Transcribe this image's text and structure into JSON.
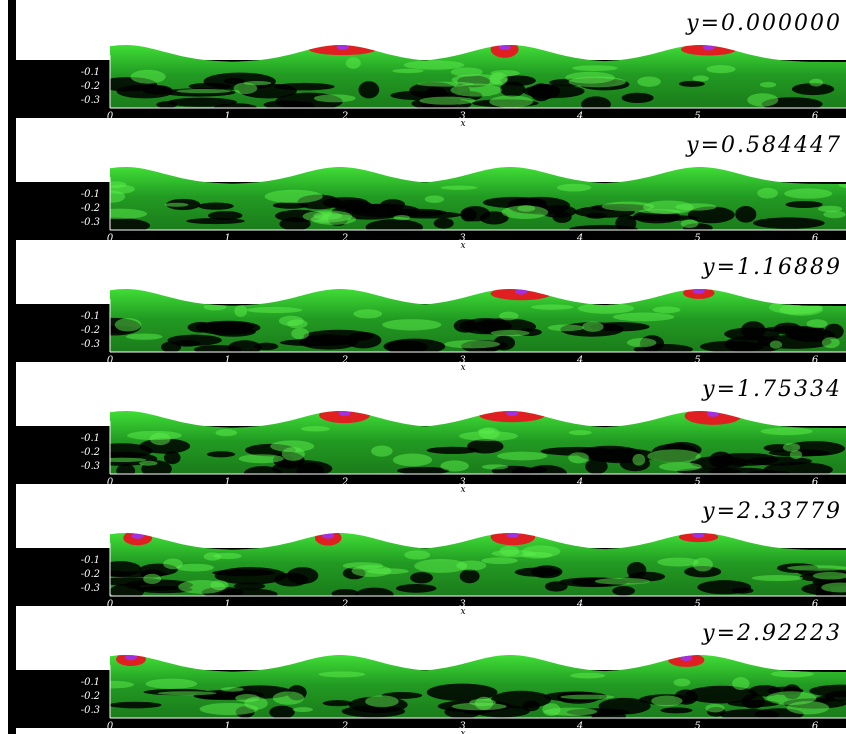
{
  "panels": [
    {
      "label": "y=0.000000"
    },
    {
      "label": "y=0.584447"
    },
    {
      "label": "y=1.16889"
    },
    {
      "label": "y=1.75334"
    },
    {
      "label": "y=2.33779"
    },
    {
      "label": "y=2.92223"
    }
  ],
  "axes": {
    "xticks": [
      "0",
      "1",
      "2",
      "3",
      "4",
      "5",
      "6"
    ],
    "yticks": [
      "-0.1",
      "-0.2",
      "-0.3"
    ],
    "xlabel": "x"
  }
}
